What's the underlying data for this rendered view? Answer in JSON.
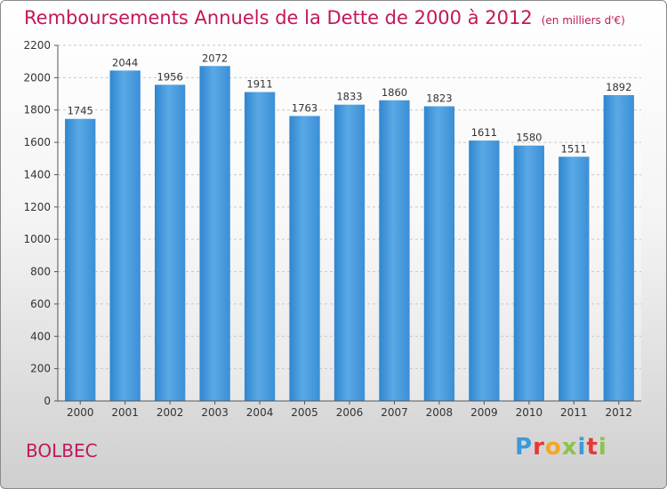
{
  "header": {
    "title": "Remboursements Annuels de la Dette de 2000 à 2012",
    "unit_note": "(en milliers d'€)"
  },
  "footer": {
    "city": "BOLBEC",
    "logo_letters": [
      "P",
      "r",
      "o",
      "x",
      "i",
      "t",
      "i"
    ],
    "logo_colors": [
      "#3b9ad9",
      "#e53935",
      "#f5a623",
      "#8bc34a",
      "#3b9ad9",
      "#e53935",
      "#8bc34a"
    ]
  },
  "chart_data": {
    "type": "bar",
    "title": "Remboursements Annuels de la Dette de 2000 à 2012",
    "categories": [
      "2000",
      "2001",
      "2002",
      "2003",
      "2004",
      "2005",
      "2006",
      "2007",
      "2008",
      "2009",
      "2010",
      "2011",
      "2012"
    ],
    "values": [
      1745,
      2044,
      1956,
      2072,
      1911,
      1763,
      1833,
      1860,
      1823,
      1611,
      1580,
      1511,
      1892
    ],
    "ylim": [
      0,
      2200
    ],
    "yticks": [
      0,
      200,
      400,
      600,
      800,
      1000,
      1200,
      1400,
      1600,
      1800,
      2000,
      2200
    ],
    "xlabel": "",
    "ylabel": "",
    "grid": true,
    "bar_color": "#4a9fe0",
    "data_labels": true
  }
}
